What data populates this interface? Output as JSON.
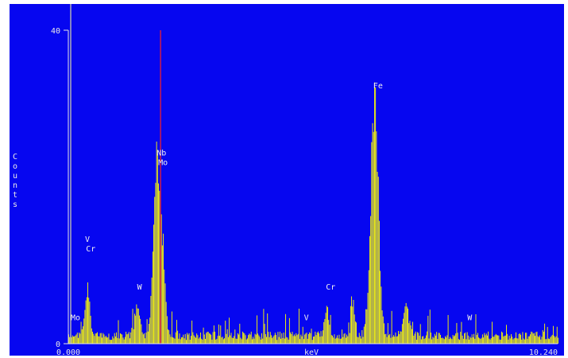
{
  "chart_data": {
    "type": "bar",
    "title": "",
    "xlabel": "keV",
    "ylabel": "Counts",
    "xlim": [
      0,
      10.24
    ],
    "ylim": [
      0,
      40
    ],
    "x_tick_labels": {
      "start": "0.000",
      "end": "10.240"
    },
    "y_tick_labels": {
      "top": "40",
      "bottom": "0"
    },
    "grid": false,
    "colors": {
      "background": "#0606f0",
      "spectrum": "#ffff00",
      "frame": "#e6e6e6",
      "marker_red": "#ff2020",
      "marker_line": "#d8d8a8"
    },
    "markers": [
      {
        "name": "cursor-line",
        "x": 0.05,
        "color": "#d8d8a8"
      },
      {
        "name": "red-marker",
        "x": 1.93,
        "height": 40,
        "color": "#ff2020"
      }
    ],
    "peak_labels": [
      {
        "text": "Mo",
        "x": 0.05,
        "y": 3.0
      },
      {
        "text": "V",
        "x": 0.35,
        "y": 13.0
      },
      {
        "text": "Cr",
        "x": 0.37,
        "y": 11.8
      },
      {
        "text": "W",
        "x": 1.44,
        "y": 6.9
      },
      {
        "text": "Nb",
        "x": 1.85,
        "y": 24.0
      },
      {
        "text": "Mo",
        "x": 1.88,
        "y": 22.8
      },
      {
        "text": "V",
        "x": 4.93,
        "y": 3.0
      },
      {
        "text": "Cr",
        "x": 5.39,
        "y": 6.9
      },
      {
        "text": "Fe",
        "x": 6.38,
        "y": 32.6
      },
      {
        "text": "W",
        "x": 8.35,
        "y": 3.0
      }
    ],
    "peaks": [
      {
        "center": 0.39,
        "height": 6.0,
        "width": 0.05
      },
      {
        "center": 1.44,
        "height": 4.0,
        "width": 0.06
      },
      {
        "center": 1.78,
        "height": 8.0,
        "width": 0.05
      },
      {
        "center": 1.86,
        "height": 21.0,
        "width": 0.06
      },
      {
        "center": 1.98,
        "height": 9.0,
        "width": 0.05
      },
      {
        "center": 5.41,
        "height": 3.6,
        "width": 0.05
      },
      {
        "center": 5.95,
        "height": 4.0,
        "width": 0.04
      },
      {
        "center": 6.4,
        "height": 32.0,
        "width": 0.08
      },
      {
        "center": 7.06,
        "height": 4.0,
        "width": 0.06
      }
    ],
    "baseline_counts": 1.2,
    "bin_width_kev": 0.02
  }
}
